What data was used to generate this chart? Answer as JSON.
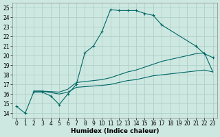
{
  "xlabel": "Humidex (Indice chaleur)",
  "bg_color": "#cde8e1",
  "grid_color": "#b0d0c8",
  "line_color": "#006666",
  "xlim": [
    -0.5,
    23.5
  ],
  "ylim": [
    13.5,
    25.5
  ],
  "xticks": [
    0,
    1,
    2,
    3,
    4,
    5,
    6,
    7,
    8,
    9,
    10,
    11,
    12,
    13,
    14,
    15,
    16,
    17,
    18,
    19,
    20,
    21,
    22,
    23
  ],
  "yticks": [
    14,
    15,
    16,
    17,
    18,
    19,
    20,
    21,
    22,
    23,
    24,
    25
  ],
  "line1_x": [
    0,
    1,
    2,
    3,
    4,
    5,
    6,
    7,
    8,
    9,
    10,
    11,
    12,
    13,
    14,
    15,
    16,
    17,
    21,
    22,
    23
  ],
  "line1_y": [
    14.7,
    14.0,
    16.2,
    16.2,
    15.8,
    14.9,
    16.0,
    17.0,
    20.3,
    21.0,
    22.5,
    24.8,
    24.7,
    24.7,
    24.7,
    24.4,
    24.2,
    23.2,
    21.0,
    20.2,
    19.8
  ],
  "line2_x": [
    2,
    3,
    5,
    6,
    7,
    10,
    11,
    12,
    13,
    14,
    15,
    16,
    17,
    18,
    19,
    20,
    21,
    22,
    23
  ],
  "line2_y": [
    16.3,
    16.3,
    16.2,
    16.5,
    17.2,
    17.5,
    17.7,
    18.0,
    18.3,
    18.5,
    18.8,
    19.1,
    19.4,
    19.6,
    19.8,
    20.0,
    20.2,
    20.3,
    18.3
  ],
  "line3_x": [
    2,
    3,
    5,
    6,
    7,
    10,
    11,
    12,
    13,
    14,
    15,
    16,
    17,
    18,
    19,
    20,
    21,
    22,
    23
  ],
  "line3_y": [
    16.3,
    16.3,
    16.0,
    16.2,
    16.7,
    16.9,
    17.0,
    17.2,
    17.4,
    17.5,
    17.7,
    17.9,
    18.0,
    18.1,
    18.2,
    18.3,
    18.4,
    18.5,
    18.3
  ],
  "xlabel_fontsize": 6.5,
  "tick_fontsize": 5.5,
  "line_width": 0.8,
  "marker_size": 3
}
